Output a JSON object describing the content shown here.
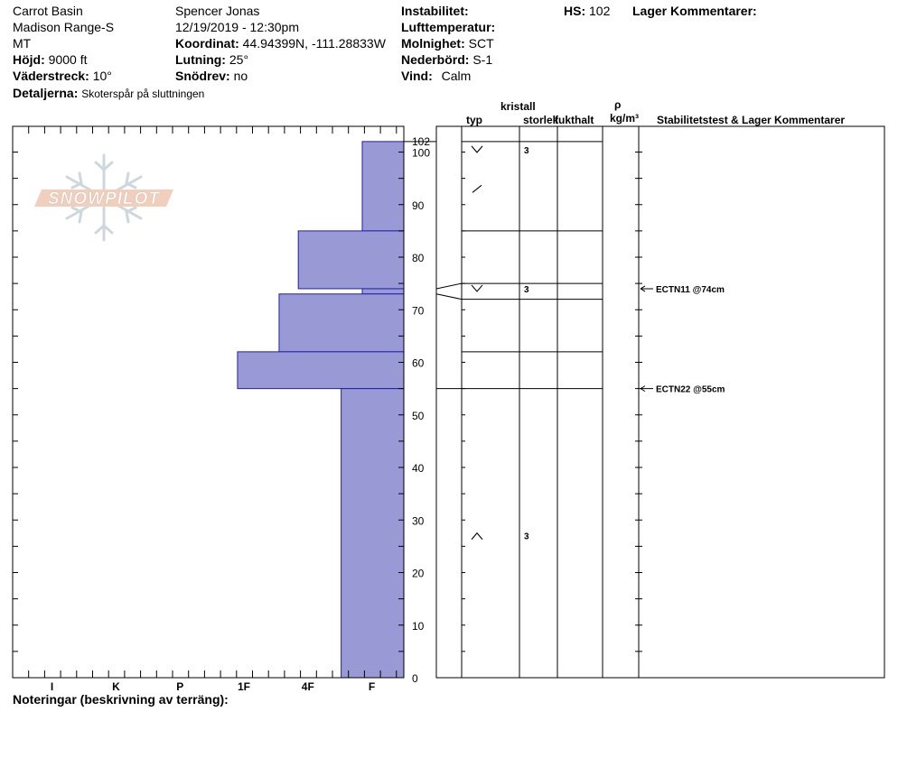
{
  "header": {
    "col1": [
      "Carrot Basin",
      "Madison Range-S",
      "MT"
    ],
    "hojd_label": "Höjd:",
    "hojd_value": "9000 ft",
    "vaderstreck_label": "Väderstreck:",
    "vaderstreck_value": "10°",
    "detaljerna_label": "Detaljerna:",
    "detaljerna_value": "Skoterspår på sluttningen",
    "observer": "Spencer Jonas",
    "datetime": "12/19/2019 - 12:30pm",
    "koordinat_label": "Koordinat:",
    "koordinat_value": "44.94399N, -111.28833W",
    "lutning_label": "Lutning:",
    "lutning_value": "25°",
    "snodrev_label": "Snödrev:",
    "snodrev_value": "no",
    "instabilitet_label": "Instabilitet:",
    "instabilitet_value": "",
    "lufttemp_label": "Lufttemperatur:",
    "lufttemp_value": "",
    "molnighet_label": "Molnighet:",
    "molnighet_value": "SCT",
    "nederbord_label": "Nederbörd:",
    "nederbord_value": "S-1",
    "vind_label": "Vind:",
    "vind_value": "Calm",
    "hs_label": "HS:",
    "hs_value": "102",
    "lager_label": "Lager Kommentarer:"
  },
  "columns": {
    "kristall": "kristall",
    "typ": "typ",
    "storlek": "storlek",
    "fukthalt": "fukthalt",
    "rho": "ρ",
    "density_unit": "kg/m³",
    "stabilitetstest": "Stabilitetstest & Lager Kommentarer"
  },
  "logo_text": "SNOWPILOT",
  "notes_label": "Noteringar (beskrivning av terräng):",
  "chart_data": {
    "type": "bar",
    "title": "",
    "xlabel": "",
    "ylabel": "",
    "hardness_scale": [
      "I",
      "K",
      "P",
      "1F",
      "4F",
      "F"
    ],
    "hardness_index": {
      "I": 6,
      "K": 5,
      "P": 4,
      "1F": 3,
      "4F": 2,
      "F": 1
    },
    "ylim": [
      0,
      102
    ],
    "y_ticks": [
      0,
      10,
      20,
      30,
      40,
      50,
      60,
      70,
      80,
      90,
      100
    ],
    "total_depth": 102,
    "fill_color": "#9999d5",
    "layers": [
      {
        "top": 102,
        "bottom": 85,
        "hardness": "F",
        "hardness_value": 0.65
      },
      {
        "top": 85,
        "bottom": 74,
        "hardness": "4F",
        "hardness_value": 1.65
      },
      {
        "top": 74,
        "bottom": 73,
        "hardness": "F",
        "hardness_value": 0.65
      },
      {
        "top": 73,
        "bottom": 62,
        "hardness": "1F",
        "hardness_value": 1.95
      },
      {
        "top": 62,
        "bottom": 55,
        "hardness": "1F+",
        "hardness_value": 2.6
      },
      {
        "top": 55,
        "bottom": 0,
        "hardness": "F+",
        "hardness_value": 0.98
      }
    ],
    "profile_boundaries": [
      102,
      85,
      75,
      72,
      62,
      55
    ],
    "grain_rows": [
      {
        "depth": 102,
        "symbol": "V",
        "size": "3"
      },
      {
        "depth": 93,
        "symbol": "/",
        "size": ""
      },
      {
        "depth": 74,
        "symbol": "V",
        "size": "3"
      },
      {
        "depth": 27,
        "symbol": "^",
        "size": "3"
      }
    ],
    "stability_tests": [
      {
        "depth": 74,
        "label": "ECTN11 @74cm"
      },
      {
        "depth": 55,
        "label": "ECTN22 @55cm"
      }
    ]
  }
}
